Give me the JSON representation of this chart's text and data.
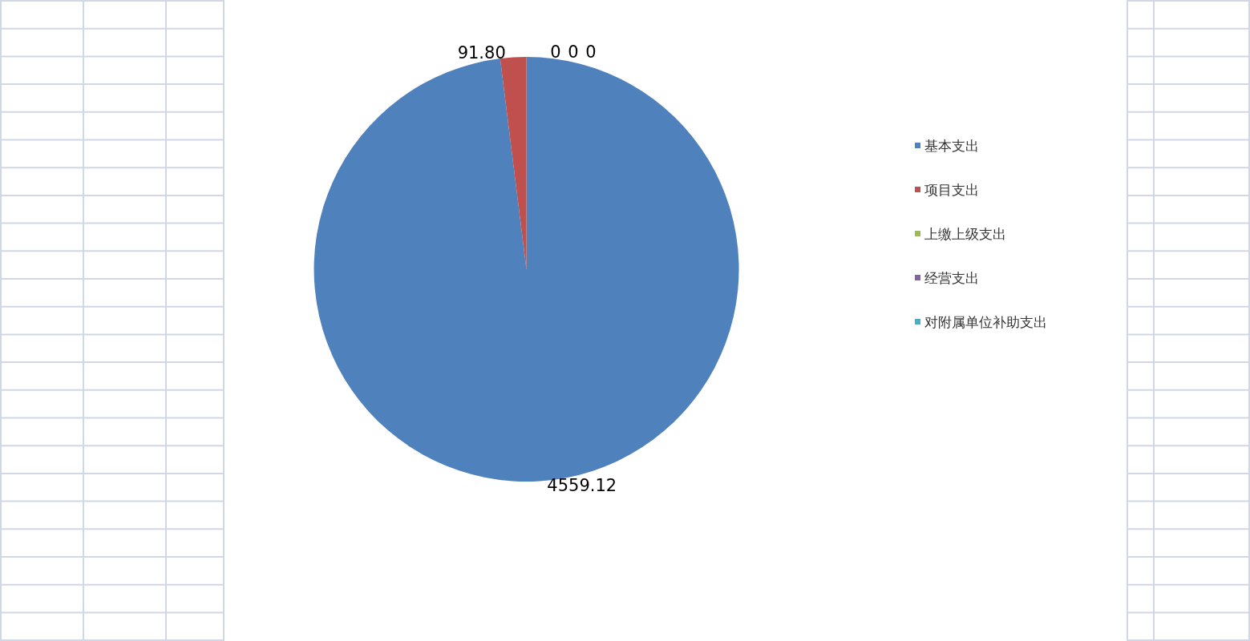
{
  "chart_data": {
    "type": "pie",
    "categories": [
      "基本支出",
      "项目支出",
      "上缴上级支出",
      "经营支出",
      "对附属单位补助支出"
    ],
    "values": [
      4559.12,
      91.8,
      0,
      0,
      0
    ],
    "colors": [
      "#4f81bd",
      "#c0504d",
      "#9bbb59",
      "#8064a2",
      "#4bacc6"
    ],
    "value_labels": [
      "4559.12",
      "91.80",
      "0",
      "0",
      "0"
    ],
    "legend": "right"
  }
}
